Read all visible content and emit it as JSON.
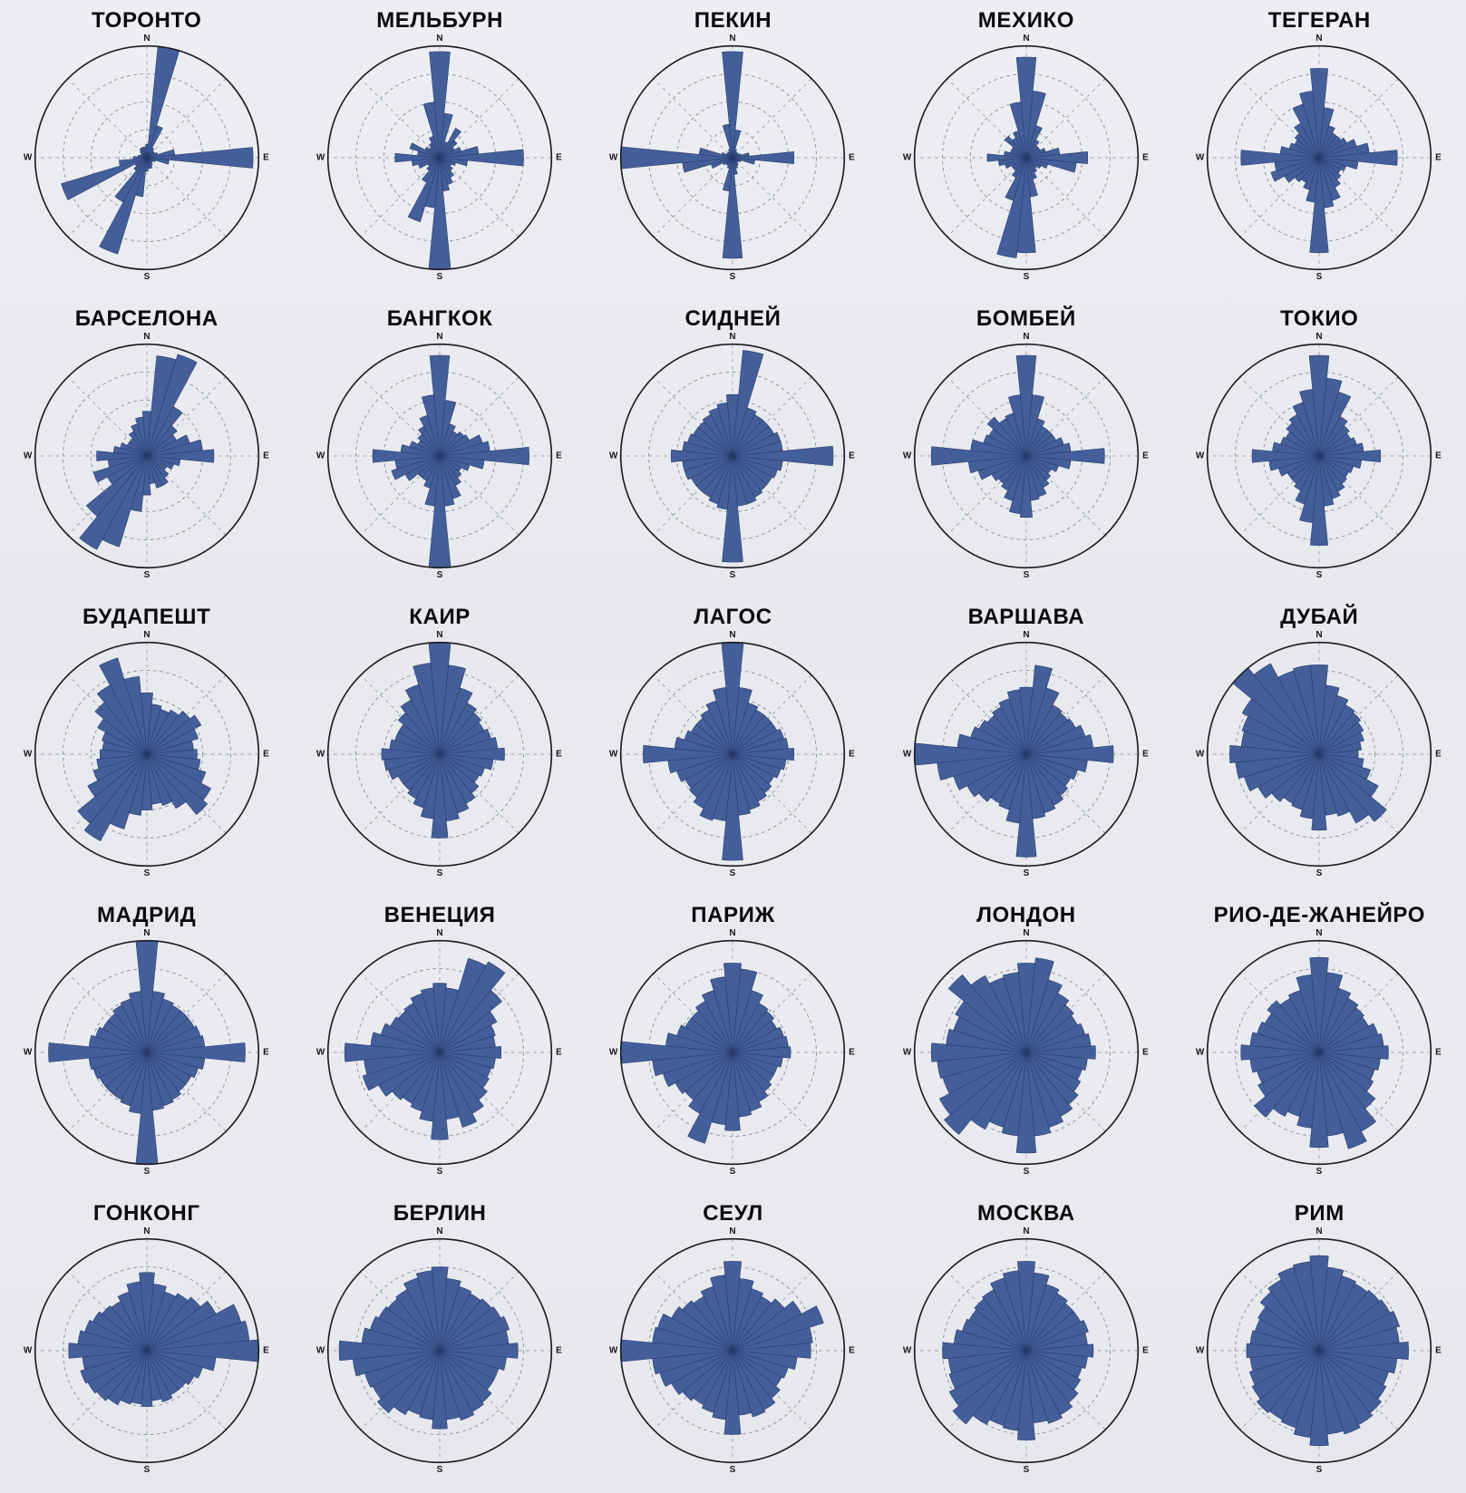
{
  "page": {
    "background_color": "#e9eaef",
    "title": ""
  },
  "chart_data": {
    "type": "bar",
    "subtype": "wind-rose-grid",
    "title": "",
    "grid": {
      "rows": 5,
      "cols": 5
    },
    "sectors": 32,
    "sector_width_deg": 11.25,
    "rings_relative": [
      0.25,
      0.5,
      0.75
    ],
    "radial_guide_angles_deg": [
      0,
      45,
      90,
      135
    ],
    "rose_color": "#44609e",
    "rose_stroke_color": "#2c3f6e",
    "ring_color": "#8a8f9a",
    "outline_color": "#1c1c1e",
    "compass_labels": {
      "n": "N",
      "e": "E",
      "s": "S",
      "w": "W"
    },
    "value_note": "relative petal radius 0-1, sector 0 = North, clockwise",
    "charts": [
      {
        "name": "ТОРОНТО",
        "values": [
          0.12,
          1.0,
          0.3,
          0.1,
          0.08,
          0.08,
          0.1,
          0.25,
          0.95,
          0.2,
          0.08,
          0.06,
          0.06,
          0.08,
          0.1,
          0.1,
          0.12,
          0.35,
          0.9,
          0.45,
          0.15,
          0.12,
          0.8,
          0.25,
          0.12,
          0.08,
          0.06,
          0.06,
          0.08,
          0.1,
          0.1,
          0.1
        ]
      },
      {
        "name": "МЕЛЬБУРН",
        "values": [
          0.95,
          0.4,
          0.15,
          0.3,
          0.2,
          0.15,
          0.2,
          0.35,
          0.75,
          0.25,
          0.15,
          0.12,
          0.15,
          0.2,
          0.25,
          0.3,
          1.0,
          0.45,
          0.6,
          0.25,
          0.15,
          0.12,
          0.2,
          0.25,
          0.4,
          0.2,
          0.28,
          0.15,
          0.12,
          0.15,
          0.2,
          0.5
        ]
      },
      {
        "name": "ПЕКИН",
        "values": [
          0.95,
          0.25,
          0.08,
          0.06,
          0.06,
          0.06,
          0.08,
          0.15,
          0.55,
          0.2,
          0.08,
          0.06,
          0.06,
          0.08,
          0.1,
          0.15,
          0.9,
          0.3,
          0.1,
          0.08,
          0.08,
          0.1,
          0.2,
          0.45,
          1.0,
          0.3,
          0.1,
          0.06,
          0.06,
          0.06,
          0.08,
          0.3
        ]
      },
      {
        "name": "МЕХИКО",
        "values": [
          0.9,
          0.6,
          0.3,
          0.18,
          0.14,
          0.14,
          0.18,
          0.3,
          0.55,
          0.45,
          0.2,
          0.15,
          0.12,
          0.15,
          0.2,
          0.35,
          0.85,
          0.9,
          0.4,
          0.2,
          0.15,
          0.15,
          0.2,
          0.25,
          0.35,
          0.2,
          0.15,
          0.15,
          0.25,
          0.2,
          0.25,
          0.5
        ]
      },
      {
        "name": "ТЕГЕРАН",
        "values": [
          0.8,
          0.45,
          0.3,
          0.25,
          0.25,
          0.28,
          0.35,
          0.45,
          0.7,
          0.35,
          0.25,
          0.22,
          0.25,
          0.3,
          0.4,
          0.45,
          0.85,
          0.4,
          0.3,
          0.25,
          0.28,
          0.35,
          0.45,
          0.4,
          0.7,
          0.35,
          0.28,
          0.25,
          0.28,
          0.35,
          0.5,
          0.6
        ]
      },
      {
        "name": "БАРСЕЛОНА",
        "values": [
          0.4,
          0.9,
          0.95,
          0.5,
          0.35,
          0.3,
          0.4,
          0.5,
          0.6,
          0.3,
          0.25,
          0.2,
          0.25,
          0.3,
          0.3,
          0.25,
          0.35,
          0.5,
          0.85,
          0.95,
          0.7,
          0.4,
          0.5,
          0.35,
          0.45,
          0.3,
          0.25,
          0.2,
          0.2,
          0.25,
          0.3,
          0.35
        ]
      },
      {
        "name": "БАНГКОК",
        "values": [
          0.9,
          0.5,
          0.3,
          0.25,
          0.28,
          0.3,
          0.4,
          0.45,
          0.8,
          0.4,
          0.28,
          0.22,
          0.25,
          0.3,
          0.4,
          0.45,
          1.0,
          0.45,
          0.3,
          0.25,
          0.25,
          0.35,
          0.45,
          0.4,
          0.6,
          0.35,
          0.28,
          0.22,
          0.25,
          0.3,
          0.38,
          0.55
        ]
      },
      {
        "name": "СИДНЕЙ",
        "values": [
          0.55,
          0.95,
          0.45,
          0.42,
          0.42,
          0.42,
          0.45,
          0.45,
          0.9,
          0.45,
          0.42,
          0.4,
          0.4,
          0.42,
          0.45,
          0.45,
          0.95,
          0.48,
          0.45,
          0.42,
          0.42,
          0.42,
          0.45,
          0.45,
          0.55,
          0.45,
          0.42,
          0.4,
          0.4,
          0.42,
          0.45,
          0.48
        ]
      },
      {
        "name": "БОМБЕЙ",
        "values": [
          0.9,
          0.55,
          0.35,
          0.3,
          0.3,
          0.3,
          0.35,
          0.4,
          0.7,
          0.4,
          0.3,
          0.25,
          0.28,
          0.32,
          0.38,
          0.4,
          0.55,
          0.52,
          0.42,
          0.35,
          0.32,
          0.35,
          0.45,
          0.52,
          0.85,
          0.5,
          0.4,
          0.38,
          0.45,
          0.38,
          0.4,
          0.55
        ]
      },
      {
        "name": "ТОКИО",
        "values": [
          0.9,
          0.7,
          0.6,
          0.4,
          0.35,
          0.32,
          0.35,
          0.4,
          0.55,
          0.38,
          0.32,
          0.3,
          0.32,
          0.36,
          0.4,
          0.45,
          0.8,
          0.6,
          0.45,
          0.35,
          0.32,
          0.32,
          0.38,
          0.45,
          0.6,
          0.42,
          0.36,
          0.34,
          0.38,
          0.42,
          0.5,
          0.6
        ]
      },
      {
        "name": "БУДАПЕШТ",
        "values": [
          0.55,
          0.45,
          0.42,
          0.45,
          0.5,
          0.55,
          0.48,
          0.42,
          0.45,
          0.48,
          0.55,
          0.65,
          0.7,
          0.55,
          0.48,
          0.45,
          0.5,
          0.55,
          0.7,
          0.88,
          0.8,
          0.6,
          0.5,
          0.45,
          0.42,
          0.4,
          0.42,
          0.5,
          0.6,
          0.7,
          0.9,
          0.7
        ]
      },
      {
        "name": "КАИР",
        "values": [
          1.0,
          0.8,
          0.62,
          0.52,
          0.48,
          0.45,
          0.48,
          0.52,
          0.58,
          0.48,
          0.42,
          0.4,
          0.45,
          0.5,
          0.55,
          0.6,
          0.75,
          0.58,
          0.5,
          0.45,
          0.42,
          0.42,
          0.48,
          0.5,
          0.52,
          0.45,
          0.42,
          0.42,
          0.48,
          0.55,
          0.65,
          0.82
        ]
      },
      {
        "name": "ЛАГОС",
        "values": [
          1.0,
          0.6,
          0.48,
          0.45,
          0.45,
          0.45,
          0.48,
          0.5,
          0.55,
          0.48,
          0.45,
          0.42,
          0.45,
          0.48,
          0.52,
          0.55,
          0.95,
          0.6,
          0.62,
          0.55,
          0.5,
          0.48,
          0.52,
          0.58,
          0.8,
          0.52,
          0.45,
          0.42,
          0.42,
          0.45,
          0.5,
          0.6
        ]
      },
      {
        "name": "ВАРШАВА",
        "values": [
          0.6,
          0.8,
          0.62,
          0.5,
          0.48,
          0.5,
          0.55,
          0.6,
          0.78,
          0.55,
          0.48,
          0.45,
          0.48,
          0.52,
          0.55,
          0.58,
          0.92,
          0.62,
          0.52,
          0.5,
          0.55,
          0.6,
          0.68,
          0.8,
          1.0,
          0.62,
          0.52,
          0.48,
          0.45,
          0.48,
          0.52,
          0.58
        ]
      },
      {
        "name": "ДУБАЙ",
        "values": [
          0.8,
          0.62,
          0.55,
          0.5,
          0.48,
          0.45,
          0.42,
          0.38,
          0.35,
          0.4,
          0.48,
          0.6,
          0.78,
          0.7,
          0.58,
          0.55,
          0.68,
          0.58,
          0.52,
          0.5,
          0.55,
          0.62,
          0.7,
          0.75,
          0.8,
          0.7,
          0.72,
          0.78,
          1.0,
          0.92,
          0.78,
          0.8
        ]
      },
      {
        "name": "МАДРИД",
        "values": [
          1.0,
          0.55,
          0.5,
          0.48,
          0.48,
          0.48,
          0.5,
          0.52,
          0.88,
          0.52,
          0.48,
          0.45,
          0.45,
          0.48,
          0.5,
          0.52,
          1.0,
          0.55,
          0.5,
          0.48,
          0.48,
          0.48,
          0.5,
          0.52,
          0.88,
          0.52,
          0.48,
          0.45,
          0.45,
          0.48,
          0.5,
          0.55
        ]
      },
      {
        "name": "ВЕНЕЦИЯ",
        "values": [
          0.62,
          0.58,
          0.88,
          0.92,
          0.72,
          0.58,
          0.52,
          0.5,
          0.55,
          0.5,
          0.48,
          0.5,
          0.55,
          0.62,
          0.7,
          0.6,
          0.78,
          0.62,
          0.55,
          0.52,
          0.55,
          0.62,
          0.72,
          0.68,
          0.85,
          0.62,
          0.55,
          0.5,
          0.48,
          0.5,
          0.55,
          0.58
        ]
      },
      {
        "name": "ПАРИЖ",
        "values": [
          0.8,
          0.75,
          0.58,
          0.5,
          0.48,
          0.45,
          0.48,
          0.5,
          0.52,
          0.45,
          0.42,
          0.42,
          0.45,
          0.5,
          0.55,
          0.58,
          0.7,
          0.65,
          0.85,
          0.62,
          0.55,
          0.58,
          0.65,
          0.72,
          1.0,
          0.6,
          0.52,
          0.48,
          0.48,
          0.52,
          0.58,
          0.68
        ]
      },
      {
        "name": "ЛОНДОН",
        "values": [
          0.8,
          0.85,
          0.68,
          0.6,
          0.55,
          0.52,
          0.55,
          0.58,
          0.62,
          0.55,
          0.52,
          0.55,
          0.6,
          0.65,
          0.7,
          0.75,
          0.9,
          0.75,
          0.7,
          0.78,
          0.95,
          0.88,
          0.78,
          0.8,
          0.85,
          0.72,
          0.68,
          0.72,
          0.9,
          0.78,
          0.7,
          0.72
        ]
      },
      {
        "name": "РИО-ДЕ-ЖАНЕЙРО",
        "values": [
          0.85,
          0.72,
          0.6,
          0.55,
          0.52,
          0.5,
          0.55,
          0.58,
          0.62,
          0.55,
          0.52,
          0.55,
          0.65,
          0.8,
          0.9,
          0.75,
          0.85,
          0.68,
          0.6,
          0.65,
          0.75,
          0.62,
          0.58,
          0.62,
          0.7,
          0.62,
          0.58,
          0.55,
          0.6,
          0.55,
          0.58,
          0.7
        ]
      },
      {
        "name": "ГОНКОНГ",
        "values": [
          0.7,
          0.6,
          0.55,
          0.58,
          0.62,
          0.7,
          0.88,
          0.92,
          1.0,
          0.62,
          0.52,
          0.48,
          0.45,
          0.45,
          0.48,
          0.45,
          0.5,
          0.48,
          0.5,
          0.55,
          0.58,
          0.6,
          0.62,
          0.58,
          0.7,
          0.62,
          0.58,
          0.55,
          0.52,
          0.5,
          0.55,
          0.62
        ]
      },
      {
        "name": "БЕРЛИН",
        "values": [
          0.75,
          0.65,
          0.6,
          0.58,
          0.6,
          0.62,
          0.65,
          0.62,
          0.7,
          0.6,
          0.55,
          0.55,
          0.6,
          0.62,
          0.65,
          0.62,
          0.7,
          0.62,
          0.6,
          0.65,
          0.72,
          0.68,
          0.7,
          0.78,
          0.9,
          0.7,
          0.65,
          0.62,
          0.6,
          0.62,
          0.68,
          0.72
        ]
      },
      {
        "name": "СЕУЛ",
        "values": [
          0.8,
          0.65,
          0.58,
          0.55,
          0.6,
          0.7,
          0.85,
          0.72,
          0.7,
          0.58,
          0.52,
          0.5,
          0.55,
          0.6,
          0.62,
          0.58,
          0.75,
          0.62,
          0.58,
          0.55,
          0.58,
          0.62,
          0.68,
          0.72,
          1.0,
          0.72,
          0.7,
          0.62,
          0.58,
          0.55,
          0.6,
          0.68
        ]
      },
      {
        "name": "МОСКВА",
        "values": [
          0.8,
          0.7,
          0.62,
          0.58,
          0.55,
          0.55,
          0.58,
          0.55,
          0.6,
          0.55,
          0.52,
          0.55,
          0.6,
          0.65,
          0.68,
          0.65,
          0.8,
          0.72,
          0.7,
          0.75,
          0.85,
          0.78,
          0.72,
          0.7,
          0.75,
          0.65,
          0.6,
          0.58,
          0.6,
          0.62,
          0.68,
          0.72
        ]
      },
      {
        "name": "РИМ",
        "values": [
          0.85,
          0.75,
          0.7,
          0.68,
          0.7,
          0.72,
          0.75,
          0.72,
          0.8,
          0.7,
          0.65,
          0.68,
          0.72,
          0.75,
          0.78,
          0.75,
          0.85,
          0.78,
          0.72,
          0.7,
          0.72,
          0.68,
          0.65,
          0.62,
          0.65,
          0.62,
          0.6,
          0.62,
          0.68,
          0.72,
          0.78,
          0.8
        ]
      }
    ]
  }
}
